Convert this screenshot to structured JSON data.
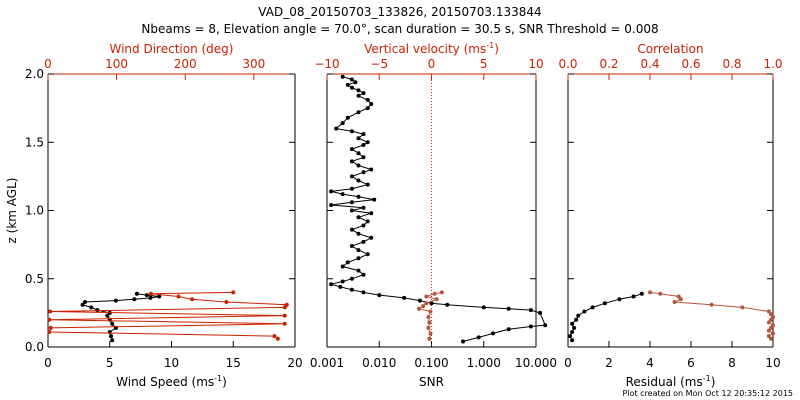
{
  "title_line1": "VAD_08_20150703_133826, 20150703.133844",
  "title_line2": "Nbeams = 8, Elevation angle = 70.0°, scan duration = 30.5 s, SNR Threshold = 0.008",
  "footer": "Plot created on Mon Oct 12 20:35:12 2015",
  "colors": {
    "black": "#000000",
    "red": "#cc2200",
    "brown": "#b5563a"
  },
  "chart_data": [
    {
      "type": "line",
      "ylabel": "z (km AGL)",
      "ylim": [
        0,
        2
      ],
      "yticks": [
        "0.0",
        "0.5",
        "1.0",
        "1.5",
        "2.0"
      ],
      "xlabel_bottom": "Wind Speed (ms",
      "xlabel_bottom_sup": "-1",
      "xlabel_bottom_close": ")",
      "xlim_bottom": [
        0,
        20
      ],
      "xticks_bottom": [
        "0",
        "5",
        "10",
        "15",
        "20"
      ],
      "xlabel_top": "Wind Direction (deg)",
      "xlim_top": [
        0,
        360
      ],
      "xticks_top": [
        "0",
        "100",
        "200",
        "300"
      ],
      "series": [
        {
          "name": "Wind Speed",
          "axis": "bottom",
          "color": "#000000",
          "points": [
            [
              5.2,
              0.05
            ],
            [
              5.1,
              0.08
            ],
            [
              5.0,
              0.11
            ],
            [
              5.5,
              0.14
            ],
            [
              5.2,
              0.17
            ],
            [
              5.0,
              0.2
            ],
            [
              4.8,
              0.23
            ],
            [
              5.0,
              0.25
            ],
            [
              4.0,
              0.27
            ],
            [
              3.5,
              0.29
            ],
            [
              2.8,
              0.31
            ],
            [
              3.0,
              0.33
            ],
            [
              5.5,
              0.34
            ],
            [
              7.0,
              0.35
            ],
            [
              8.3,
              0.36
            ],
            [
              9.0,
              0.37
            ],
            [
              8.0,
              0.38
            ],
            [
              7.2,
              0.39
            ]
          ]
        },
        {
          "name": "Wind Direction",
          "axis": "top",
          "color": "#cc2200",
          "points": [
            [
              335,
              0.06
            ],
            [
              330,
              0.08
            ],
            [
              2,
              0.11
            ],
            [
              4,
              0.14
            ],
            [
              345,
              0.17
            ],
            [
              2,
              0.2
            ],
            [
              345,
              0.23
            ],
            [
              3,
              0.26
            ],
            [
              345,
              0.29
            ],
            [
              348,
              0.31
            ],
            [
              260,
              0.33
            ],
            [
              210,
              0.35
            ],
            [
              190,
              0.37
            ],
            [
              150,
              0.39
            ],
            [
              270,
              0.4
            ]
          ]
        }
      ]
    },
    {
      "type": "line",
      "ylim": [
        0,
        2
      ],
      "xlabel_bottom": "SNR",
      "xscale_bottom": "log",
      "xlim_bottom": [
        0.001,
        10
      ],
      "xticks_bottom": [
        "0.001",
        "0.010",
        "0.100",
        "1.000",
        "10.000"
      ],
      "xlabel_top": "Vertical velocity (ms",
      "xlabel_top_sup": "-1",
      "xlabel_top_close": ")",
      "xlim_top": [
        -10,
        10
      ],
      "xticks_top": [
        "−10",
        "−5",
        "0",
        "5",
        "10"
      ],
      "series": [
        {
          "name": "SNR",
          "axis": "bottom",
          "color": "#000000",
          "points": [
            [
              0.4,
              0.04
            ],
            [
              0.8,
              0.07
            ],
            [
              1.5,
              0.1
            ],
            [
              3,
              0.13
            ],
            [
              8,
              0.15
            ],
            [
              15,
              0.16
            ],
            [
              12,
              0.25
            ],
            [
              8,
              0.27
            ],
            [
              3,
              0.28
            ],
            [
              1,
              0.29
            ],
            [
              0.2,
              0.31
            ],
            [
              0.1,
              0.32
            ],
            [
              0.06,
              0.34
            ],
            [
              0.03,
              0.36
            ],
            [
              0.01,
              0.38
            ],
            [
              0.005,
              0.4
            ],
            [
              0.003,
              0.42
            ],
            [
              0.0018,
              0.44
            ],
            [
              0.0012,
              0.46
            ],
            [
              0.002,
              0.48
            ],
            [
              0.003,
              0.5
            ],
            [
              0.005,
              0.53
            ],
            [
              0.004,
              0.56
            ],
            [
              0.002,
              0.59
            ],
            [
              0.0025,
              0.62
            ],
            [
              0.004,
              0.65
            ],
            [
              0.006,
              0.68
            ],
            [
              0.004,
              0.71
            ],
            [
              0.003,
              0.74
            ],
            [
              0.005,
              0.77
            ],
            [
              0.007,
              0.8
            ],
            [
              0.004,
              0.83
            ],
            [
              0.003,
              0.86
            ],
            [
              0.005,
              0.89
            ],
            [
              0.006,
              0.92
            ],
            [
              0.004,
              0.95
            ],
            [
              0.007,
              0.98
            ],
            [
              0.003,
              1.0
            ],
            [
              0.005,
              1.02
            ],
            [
              0.0012,
              1.04
            ],
            [
              0.003,
              1.06
            ],
            [
              0.008,
              1.08
            ],
            [
              0.004,
              1.1
            ],
            [
              0.002,
              1.12
            ],
            [
              0.0012,
              1.14
            ],
            [
              0.003,
              1.16
            ],
            [
              0.006,
              1.19
            ],
            [
              0.004,
              1.22
            ],
            [
              0.003,
              1.25
            ],
            [
              0.005,
              1.28
            ],
            [
              0.007,
              1.3
            ],
            [
              0.004,
              1.33
            ],
            [
              0.003,
              1.36
            ],
            [
              0.005,
              1.39
            ],
            [
              0.004,
              1.42
            ],
            [
              0.003,
              1.45
            ],
            [
              0.005,
              1.48
            ],
            [
              0.006,
              1.5
            ],
            [
              0.004,
              1.53
            ],
            [
              0.005,
              1.56
            ],
            [
              0.003,
              1.58
            ],
            [
              0.0015,
              1.6
            ],
            [
              0.002,
              1.64
            ],
            [
              0.0025,
              1.68
            ],
            [
              0.004,
              1.72
            ],
            [
              0.006,
              1.75
            ],
            [
              0.007,
              1.78
            ],
            [
              0.006,
              1.81
            ],
            [
              0.004,
              1.84
            ],
            [
              0.005,
              1.86
            ],
            [
              0.004,
              1.88
            ],
            [
              0.003,
              1.9
            ],
            [
              0.0025,
              1.92
            ],
            [
              0.0035,
              1.94
            ],
            [
              0.003,
              1.96
            ],
            [
              0.002,
              1.98
            ]
          ]
        },
        {
          "name": "Vertical velocity",
          "axis": "top",
          "color": "#b5563a",
          "points": [
            [
              -0.2,
              0.06
            ],
            [
              -0.1,
              0.1
            ],
            [
              -0.3,
              0.14
            ],
            [
              -0.2,
              0.18
            ],
            [
              -0.3,
              0.22
            ],
            [
              -0.1,
              0.26
            ],
            [
              -1.2,
              0.28
            ],
            [
              -0.8,
              0.3
            ],
            [
              -0.5,
              0.32
            ],
            [
              0.5,
              0.35
            ],
            [
              -0.5,
              0.37
            ],
            [
              0.3,
              0.39
            ],
            [
              1.0,
              0.4
            ]
          ]
        }
      ],
      "reference_line": {
        "axis": "top",
        "value": 0,
        "color": "#cc2200",
        "style": "dotted"
      }
    },
    {
      "type": "line",
      "ylim": [
        0,
        2
      ],
      "xlabel_bottom": "Residual (ms",
      "xlabel_bottom_sup": "-1",
      "xlabel_bottom_close": ")",
      "xlim_bottom": [
        0,
        10
      ],
      "xticks_bottom": [
        "0",
        "2",
        "4",
        "6",
        "8",
        "10"
      ],
      "xlabel_top": "Correlation",
      "xlim_top": [
        0,
        1
      ],
      "xticks_top": [
        "0.0",
        "0.2",
        "0.4",
        "0.6",
        "0.8",
        "1.0"
      ],
      "series": [
        {
          "name": "Residual",
          "axis": "bottom",
          "color": "#000000",
          "points": [
            [
              0.2,
              0.05
            ],
            [
              0.1,
              0.08
            ],
            [
              0.2,
              0.11
            ],
            [
              0.3,
              0.14
            ],
            [
              0.2,
              0.17
            ],
            [
              0.4,
              0.2
            ],
            [
              0.5,
              0.23
            ],
            [
              0.8,
              0.26
            ],
            [
              1.2,
              0.29
            ],
            [
              1.8,
              0.32
            ],
            [
              2.5,
              0.35
            ],
            [
              3.2,
              0.37
            ],
            [
              3.6,
              0.39
            ]
          ]
        },
        {
          "name": "Correlation",
          "axis": "top",
          "color": "#b5563a",
          "points": [
            [
              0.99,
              0.06
            ],
            [
              0.98,
              0.08
            ],
            [
              1.0,
              0.1
            ],
            [
              0.98,
              0.12
            ],
            [
              0.99,
              0.14
            ],
            [
              1.0,
              0.16
            ],
            [
              0.98,
              0.18
            ],
            [
              0.99,
              0.2
            ],
            [
              1.0,
              0.22
            ],
            [
              0.99,
              0.24
            ],
            [
              0.98,
              0.26
            ],
            [
              0.85,
              0.29
            ],
            [
              0.7,
              0.31
            ],
            [
              0.52,
              0.33
            ],
            [
              0.55,
              0.35
            ],
            [
              0.54,
              0.37
            ],
            [
              0.45,
              0.39
            ],
            [
              0.4,
              0.4
            ]
          ]
        }
      ]
    }
  ]
}
